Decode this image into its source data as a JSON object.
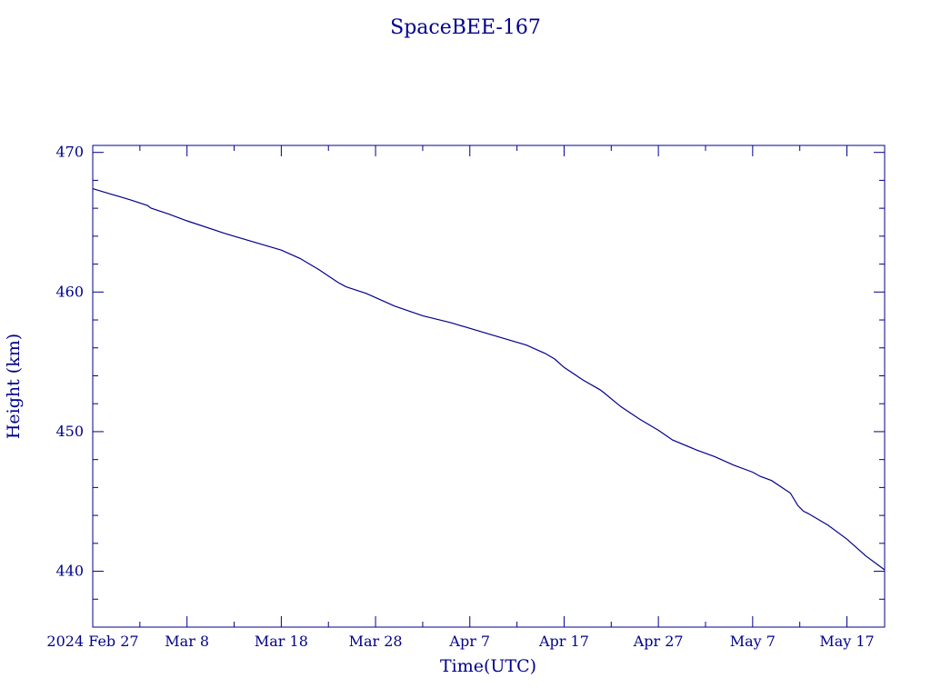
{
  "chart_data": {
    "type": "line",
    "title": "SpaceBEE-167",
    "xlabel": "Time(UTC)",
    "ylabel": "Height (km)",
    "x_tick_labels": [
      "2024 Feb 27",
      "Mar  8",
      "Mar 18",
      "Mar 28",
      "Apr  7",
      "Apr 17",
      "Apr 27",
      "May  7",
      "May 17"
    ],
    "x_tick_days": [
      0,
      10,
      20,
      30,
      40,
      50,
      60,
      70,
      80
    ],
    "xlim": [
      0,
      84
    ],
    "y_ticks": [
      440,
      450,
      460,
      470
    ],
    "ylim": [
      436,
      470.5
    ],
    "grid": false,
    "legend": "none",
    "color": "#00008b",
    "series": [
      {
        "x": [
          0,
          2,
          4,
          5.8,
          6.2,
          8,
          10,
          14,
          18,
          20,
          22,
          24,
          26,
          26.8,
          27.2,
          29,
          32,
          35,
          38,
          42,
          46,
          48,
          49,
          50,
          52,
          53.8,
          54.2,
          56,
          58,
          60,
          61.5,
          64,
          66,
          68,
          70,
          70.8,
          72,
          74,
          74.8,
          75.4,
          76,
          78,
          80,
          82,
          84
        ],
        "y": [
          467.4,
          467.0,
          466.6,
          466.2,
          466.0,
          465.6,
          465.1,
          464.2,
          463.4,
          463.0,
          462.4,
          461.6,
          460.7,
          460.4,
          460.3,
          459.9,
          459.0,
          458.3,
          457.8,
          457.0,
          456.2,
          455.6,
          455.2,
          454.6,
          453.7,
          453.0,
          452.8,
          451.8,
          450.9,
          450.1,
          449.4,
          448.7,
          448.2,
          447.6,
          447.1,
          446.8,
          446.5,
          445.6,
          444.7,
          444.3,
          444.1,
          443.3,
          442.3,
          441.1,
          440.1
        ]
      }
    ]
  }
}
